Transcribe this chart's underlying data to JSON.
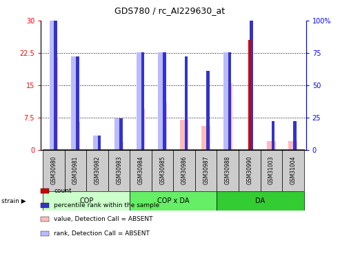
{
  "title": "GDS780 / rc_AI229630_at",
  "samples": [
    "GSM30980",
    "GSM30981",
    "GSM30982",
    "GSM30983",
    "GSM30984",
    "GSM30985",
    "GSM30986",
    "GSM30987",
    "GSM30988",
    "GSM30990",
    "GSM31003",
    "GSM31004"
  ],
  "value_absent": [
    21.5,
    6.5,
    0.0,
    1.8,
    9.5,
    11.0,
    7.0,
    5.5,
    15.5,
    0.0,
    2.0,
    2.0
  ],
  "rank_absent": [
    30.0,
    21.7,
    3.3,
    7.3,
    22.7,
    22.7,
    0.0,
    0.0,
    22.7,
    0.0,
    0.0,
    0.0
  ],
  "count_val": [
    0.0,
    0.0,
    0.0,
    0.0,
    0.0,
    0.0,
    0.0,
    0.0,
    0.0,
    25.5,
    0.0,
    0.0
  ],
  "pct_rank_val": [
    30.0,
    21.7,
    3.3,
    7.3,
    22.7,
    22.7,
    21.7,
    18.3,
    22.7,
    30.0,
    6.7,
    6.7
  ],
  "ylim_left": [
    0,
    30
  ],
  "yticks_left": [
    0,
    7.5,
    15,
    22.5,
    30
  ],
  "ytick_labels_left": [
    "0",
    "7.5",
    "15",
    "22.5",
    "30"
  ],
  "yticks_right": [
    0,
    25,
    50,
    75,
    100
  ],
  "ytick_labels_right": [
    "0",
    "25",
    "50",
    "75",
    "100%"
  ],
  "color_count": "#cc0000",
  "color_pct_rank": "#3333cc",
  "color_value_absent": "#ffbbbb",
  "color_rank_absent": "#bbbbff",
  "group_defs": [
    {
      "start": 0,
      "end": 3,
      "label": "COP",
      "color": "#ccffcc"
    },
    {
      "start": 4,
      "end": 7,
      "label": "COP x DA",
      "color": "#66ee66"
    },
    {
      "start": 8,
      "end": 11,
      "label": "DA",
      "color": "#33cc33"
    }
  ],
  "legend_items": [
    {
      "color": "#cc0000",
      "label": "count"
    },
    {
      "color": "#3333cc",
      "label": "percentile rank within the sample"
    },
    {
      "color": "#ffbbbb",
      "label": "value, Detection Call = ABSENT"
    },
    {
      "color": "#bbbbff",
      "label": "rank, Detection Call = ABSENT"
    }
  ]
}
